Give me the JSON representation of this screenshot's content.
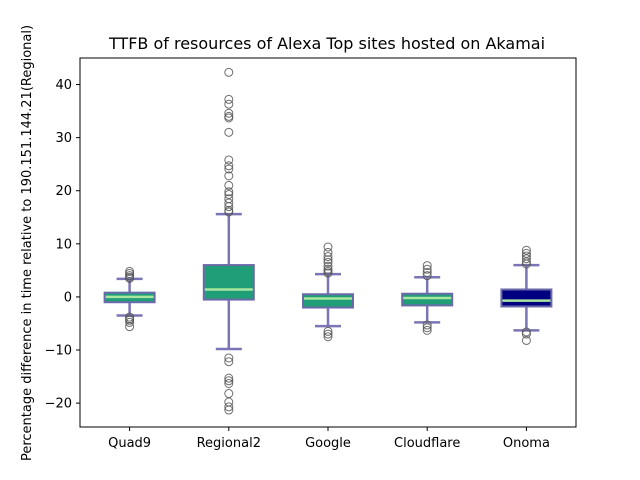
{
  "chart_data": {
    "type": "box",
    "title": "TTFB of resources of Alexa Top sites hosted on Akamai",
    "xlabel": "",
    "ylabel": "Percentage difference in time relative to 190.151.144.21(Regional)",
    "ylim": [
      -24.5,
      45
    ],
    "yticks": [
      -20,
      -10,
      0,
      10,
      20,
      30,
      40
    ],
    "grid": false,
    "legend": "none",
    "categories": [
      "Quad9",
      "Regional2",
      "Google",
      "Cloudflare",
      "Onoma"
    ],
    "series": [
      {
        "whisker_low": -3.5,
        "q1": -1.0,
        "median": 0.0,
        "q3": 0.8,
        "whisker_high": 3.4,
        "fill_color": "#1f9e77",
        "outliers": [
          4.8,
          4.4,
          4.0,
          3.7,
          3.5,
          -3.8,
          -4.1,
          -4.4,
          -4.8,
          -5.6
        ]
      },
      {
        "whisker_low": -9.8,
        "q1": -0.5,
        "median": 1.4,
        "q3": 6.0,
        "whisker_high": 15.6,
        "fill_color": "#1f9e77",
        "outliers": [
          42.3,
          37.2,
          36.3,
          34.6,
          34.0,
          33.7,
          31.0,
          25.8,
          24.7,
          24.1,
          22.8,
          21.0,
          19.8,
          19.3,
          18.5,
          17.7,
          17.0,
          16.3,
          16.0,
          -11.5,
          -12.2,
          -15.3,
          -15.8,
          -16.3,
          -18.2,
          -19.8,
          -20.7,
          -21.3
        ]
      },
      {
        "whisker_low": -5.5,
        "q1": -2.0,
        "median": -0.3,
        "q3": 0.5,
        "whisker_high": 4.3,
        "fill_color": "#1f9e77",
        "outliers": [
          9.4,
          8.4,
          7.6,
          7.0,
          6.5,
          5.8,
          5.2,
          4.8,
          4.5,
          -6.5,
          -7.0,
          -7.5
        ]
      },
      {
        "whisker_low": -4.8,
        "q1": -1.6,
        "median": -0.2,
        "q3": 0.6,
        "whisker_high": 3.7,
        "fill_color": "#1f9e77",
        "outliers": [
          5.9,
          5.2,
          4.6,
          4.0,
          -5.3,
          -5.8,
          -6.3
        ]
      },
      {
        "whisker_low": -6.3,
        "q1": -1.8,
        "median": -0.7,
        "q3": 1.4,
        "whisker_high": 6.0,
        "fill_color": "#000080",
        "outliers": [
          8.8,
          8.2,
          7.7,
          7.2,
          6.6,
          6.2,
          -6.6,
          -7.0,
          -8.2
        ]
      }
    ],
    "colors": {
      "box_edge": "#6a6aaa",
      "whisker": "#7a76b5",
      "median": "#a8e6a0",
      "outlier_edge": "#555555"
    }
  }
}
